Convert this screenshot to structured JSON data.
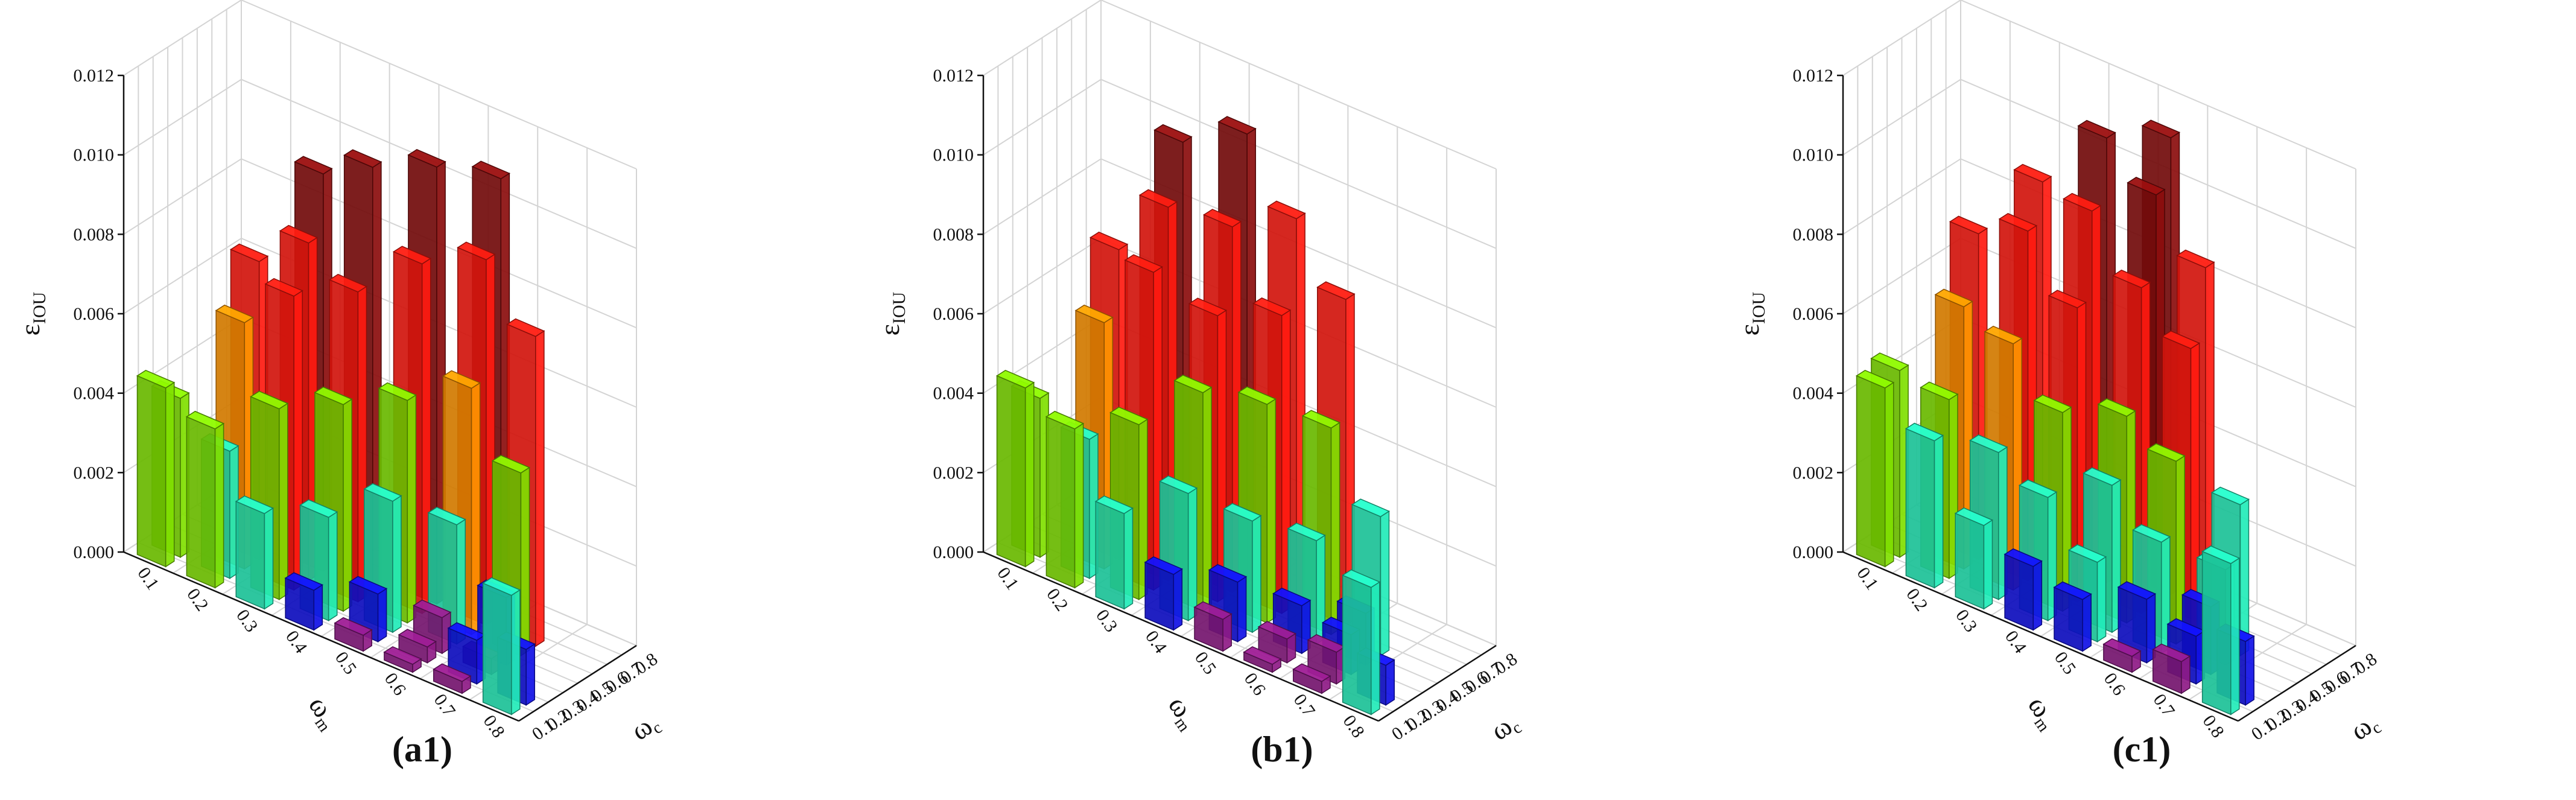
{
  "colors": {
    "0.000-0.001": "#8e1a86",
    "0.001-0.002": "#1010e6",
    "0.002-0.004": "#22ebb8",
    "0.004-0.006": "#80e000",
    "0.006-0.007": "#ff9400",
    "0.007-0.010": "#ff1a10",
    "0.010-0.012": "#8b0d0d"
  },
  "chart_data": [
    {
      "type": "bar3d",
      "label": "(a1)",
      "zlabel": "ε",
      "zlabel_rest": "IOU",
      "xlabel": "ω",
      "xlabel_sub": "m",
      "ylabel": "ω",
      "ylabel_sub": "c",
      "x_ticks": [
        "0.1",
        "0.2",
        "0.3",
        "0.4",
        "0.5",
        "0.6",
        "0.7",
        "0.8"
      ],
      "y_ticks": [
        "0.1",
        "0.2",
        "0.3",
        "0.4",
        "0.5",
        "0.6",
        "0.7",
        "0.8"
      ],
      "z_ticks": [
        "0.000",
        "0.002",
        "0.004",
        "0.006",
        "0.008",
        "0.010",
        "0.012"
      ],
      "zlim": [
        0,
        0.012
      ],
      "bars": [
        {
          "x": 0.1,
          "y": 0.1,
          "z": 0.0045
        },
        {
          "x": 0.1,
          "y": 0.2,
          "z": 0.004
        },
        {
          "x": 0.2,
          "y": 0.1,
          "z": 0.004
        },
        {
          "x": 0.2,
          "y": 0.2,
          "z": 0.0032
        },
        {
          "x": 0.2,
          "y": 0.3,
          "z": 0.0062
        },
        {
          "x": 0.2,
          "y": 0.4,
          "z": 0.0075
        },
        {
          "x": 0.3,
          "y": 0.1,
          "z": 0.0024
        },
        {
          "x": 0.3,
          "y": 0.2,
          "z": 0.0048
        },
        {
          "x": 0.3,
          "y": 0.3,
          "z": 0.0074
        },
        {
          "x": 0.3,
          "y": 0.4,
          "z": 0.0085
        },
        {
          "x": 0.3,
          "y": 0.5,
          "z": 0.01
        },
        {
          "x": 0.4,
          "y": 0.1,
          "z": 0.001
        },
        {
          "x": 0.4,
          "y": 0.2,
          "z": 0.0026
        },
        {
          "x": 0.4,
          "y": 0.3,
          "z": 0.0052
        },
        {
          "x": 0.4,
          "y": 0.4,
          "z": 0.0078
        },
        {
          "x": 0.4,
          "y": 0.5,
          "z": 0.0107
        },
        {
          "x": 0.5,
          "y": 0.1,
          "z": 0.0004
        },
        {
          "x": 0.5,
          "y": 0.2,
          "z": 0.0012
        },
        {
          "x": 0.5,
          "y": 0.3,
          "z": 0.0033
        },
        {
          "x": 0.5,
          "y": 0.4,
          "z": 0.0056
        },
        {
          "x": 0.5,
          "y": 0.5,
          "z": 0.0088
        },
        {
          "x": 0.5,
          "y": 0.6,
          "z": 0.011
        },
        {
          "x": 0.6,
          "y": 0.1,
          "z": 0.0002
        },
        {
          "x": 0.6,
          "y": 0.2,
          "z": 0.0004
        },
        {
          "x": 0.6,
          "y": 0.3,
          "z": 0.0009
        },
        {
          "x": 0.6,
          "y": 0.4,
          "z": 0.003
        },
        {
          "x": 0.6,
          "y": 0.5,
          "z": 0.0062
        },
        {
          "x": 0.6,
          "y": 0.6,
          "z": 0.0092
        },
        {
          "x": 0.6,
          "y": 0.7,
          "z": 0.011
        },
        {
          "x": 0.7,
          "y": 0.1,
          "z": 0.0003
        },
        {
          "x": 0.7,
          "y": 0.2,
          "z": 0.0011
        },
        {
          "x": 0.7,
          "y": 0.3,
          "z": 0.0004
        },
        {
          "x": 0.7,
          "y": 0.4,
          "z": 0.0017
        },
        {
          "x": 0.7,
          "y": 0.5,
          "z": 0.0046
        },
        {
          "x": 0.7,
          "y": 0.6,
          "z": 0.0078
        },
        {
          "x": 0.8,
          "y": 0.1,
          "z": 0.003
        },
        {
          "x": 0.8,
          "y": 0.2,
          "z": 0.0014
        }
      ]
    },
    {
      "type": "bar3d",
      "label": "(b1)",
      "zlabel": "ε",
      "zlabel_rest": "IOU",
      "xlabel": "ω",
      "xlabel_sub": "m",
      "ylabel": "ω",
      "ylabel_sub": "c",
      "x_ticks": [
        "0.1",
        "0.2",
        "0.3",
        "0.4",
        "0.5",
        "0.6",
        "0.7",
        "0.8"
      ],
      "y_ticks": [
        "0.1",
        "0.2",
        "0.3",
        "0.4",
        "0.5",
        "0.6",
        "0.7",
        "0.8"
      ],
      "z_ticks": [
        "0.000",
        "0.002",
        "0.004",
        "0.006",
        "0.008",
        "0.010",
        "0.012"
      ],
      "zlim": [
        0,
        0.012
      ],
      "bars": [
        {
          "x": 0.1,
          "y": 0.1,
          "z": 0.0045
        },
        {
          "x": 0.1,
          "y": 0.2,
          "z": 0.004
        },
        {
          "x": 0.2,
          "y": 0.1,
          "z": 0.004
        },
        {
          "x": 0.2,
          "y": 0.2,
          "z": 0.0035
        },
        {
          "x": 0.2,
          "y": 0.3,
          "z": 0.0062
        },
        {
          "x": 0.2,
          "y": 0.4,
          "z": 0.0078
        },
        {
          "x": 0.3,
          "y": 0.1,
          "z": 0.0024
        },
        {
          "x": 0.3,
          "y": 0.2,
          "z": 0.0044
        },
        {
          "x": 0.3,
          "y": 0.3,
          "z": 0.008
        },
        {
          "x": 0.3,
          "y": 0.4,
          "z": 0.0094
        },
        {
          "x": 0.3,
          "y": 0.5,
          "z": 0.0108
        },
        {
          "x": 0.4,
          "y": 0.1,
          "z": 0.0014
        },
        {
          "x": 0.4,
          "y": 0.2,
          "z": 0.0032
        },
        {
          "x": 0.4,
          "y": 0.3,
          "z": 0.0055
        },
        {
          "x": 0.4,
          "y": 0.4,
          "z": 0.0072
        },
        {
          "x": 0.4,
          "y": 0.5,
          "z": 0.0092
        },
        {
          "x": 0.4,
          "y": 0.6,
          "z": 0.0113
        },
        {
          "x": 0.5,
          "y": 0.1,
          "z": 0.0008
        },
        {
          "x": 0.5,
          "y": 0.2,
          "z": 0.0015
        },
        {
          "x": 0.5,
          "y": 0.3,
          "z": 0.0028
        },
        {
          "x": 0.5,
          "y": 0.4,
          "z": 0.0055
        },
        {
          "x": 0.5,
          "y": 0.5,
          "z": 0.0075
        },
        {
          "x": 0.5,
          "y": 0.6,
          "z": 0.0097
        },
        {
          "x": 0.6,
          "y": 0.1,
          "z": 0.0002
        },
        {
          "x": 0.6,
          "y": 0.2,
          "z": 0.0006
        },
        {
          "x": 0.6,
          "y": 0.3,
          "z": 0.0012
        },
        {
          "x": 0.6,
          "y": 0.4,
          "z": 0.0026
        },
        {
          "x": 0.6,
          "y": 0.5,
          "z": 0.0052
        },
        {
          "x": 0.6,
          "y": 0.6,
          "z": 0.0082
        },
        {
          "x": 0.7,
          "y": 0.1,
          "z": 0.0003
        },
        {
          "x": 0.7,
          "y": 0.2,
          "z": 0.0008
        },
        {
          "x": 0.7,
          "y": 0.3,
          "z": 0.001
        },
        {
          "x": 0.7,
          "y": 0.4,
          "z": 0.0013
        },
        {
          "x": 0.7,
          "y": 0.5,
          "z": 0.0035
        },
        {
          "x": 0.8,
          "y": 0.1,
          "z": 0.0032
        },
        {
          "x": 0.8,
          "y": 0.2,
          "z": 0.001
        }
      ]
    },
    {
      "type": "bar3d",
      "label": "(c1)",
      "zlabel": "ε",
      "zlabel_rest": "IOU",
      "xlabel": "ω",
      "xlabel_sub": "m",
      "ylabel": "ω",
      "ylabel_sub": "c",
      "x_ticks": [
        "0.1",
        "0.2",
        "0.3",
        "0.4",
        "0.5",
        "0.6",
        "0.7",
        "0.8"
      ],
      "y_ticks": [
        "0.1",
        "0.2",
        "0.3",
        "0.4",
        "0.5",
        "0.6",
        "0.7",
        "0.8"
      ],
      "z_ticks": [
        "0.000",
        "0.002",
        "0.004",
        "0.006",
        "0.008",
        "0.010",
        "0.012"
      ],
      "zlim": [
        0,
        0.012
      ],
      "bars": [
        {
          "x": 0.1,
          "y": 0.1,
          "z": 0.0045
        },
        {
          "x": 0.1,
          "y": 0.2,
          "z": 0.0047
        },
        {
          "x": 0.2,
          "y": 0.1,
          "z": 0.0037
        },
        {
          "x": 0.2,
          "y": 0.2,
          "z": 0.0045
        },
        {
          "x": 0.2,
          "y": 0.3,
          "z": 0.0066
        },
        {
          "x": 0.2,
          "y": 0.4,
          "z": 0.0082
        },
        {
          "x": 0.3,
          "y": 0.1,
          "z": 0.0021
        },
        {
          "x": 0.3,
          "y": 0.2,
          "z": 0.0037
        },
        {
          "x": 0.3,
          "y": 0.3,
          "z": 0.0062
        },
        {
          "x": 0.3,
          "y": 0.4,
          "z": 0.0088
        },
        {
          "x": 0.3,
          "y": 0.5,
          "z": 0.0098
        },
        {
          "x": 0.4,
          "y": 0.1,
          "z": 0.0016
        },
        {
          "x": 0.4,
          "y": 0.2,
          "z": 0.0031
        },
        {
          "x": 0.4,
          "y": 0.3,
          "z": 0.005
        },
        {
          "x": 0.4,
          "y": 0.4,
          "z": 0.0074
        },
        {
          "x": 0.4,
          "y": 0.5,
          "z": 0.0096
        },
        {
          "x": 0.4,
          "y": 0.6,
          "z": 0.0112
        },
        {
          "x": 0.5,
          "y": 0.1,
          "z": 0.0013
        },
        {
          "x": 0.5,
          "y": 0.2,
          "z": 0.002
        },
        {
          "x": 0.5,
          "y": 0.3,
          "z": 0.0037
        },
        {
          "x": 0.5,
          "y": 0.4,
          "z": 0.0052
        },
        {
          "x": 0.5,
          "y": 0.5,
          "z": 0.0082
        },
        {
          "x": 0.5,
          "y": 0.6,
          "z": 0.0103
        },
        {
          "x": 0.5,
          "y": 0.7,
          "z": 0.0115
        },
        {
          "x": 0.6,
          "y": 0.1,
          "z": 0.0004
        },
        {
          "x": 0.6,
          "y": 0.2,
          "z": 0.0016
        },
        {
          "x": 0.6,
          "y": 0.3,
          "z": 0.0028
        },
        {
          "x": 0.6,
          "y": 0.4,
          "z": 0.0046
        },
        {
          "x": 0.6,
          "y": 0.5,
          "z": 0.0072
        },
        {
          "x": 0.6,
          "y": 0.6,
          "z": 0.009
        },
        {
          "x": 0.7,
          "y": 0.1,
          "z": 0.0008
        },
        {
          "x": 0.7,
          "y": 0.2,
          "z": 0.0012
        },
        {
          "x": 0.7,
          "y": 0.3,
          "z": 0.0017
        },
        {
          "x": 0.7,
          "y": 0.4,
          "z": 0.0024
        },
        {
          "x": 0.7,
          "y": 0.5,
          "z": 0.0038
        },
        {
          "x": 0.8,
          "y": 0.1,
          "z": 0.0038
        },
        {
          "x": 0.8,
          "y": 0.2,
          "z": 0.0016
        }
      ]
    }
  ]
}
